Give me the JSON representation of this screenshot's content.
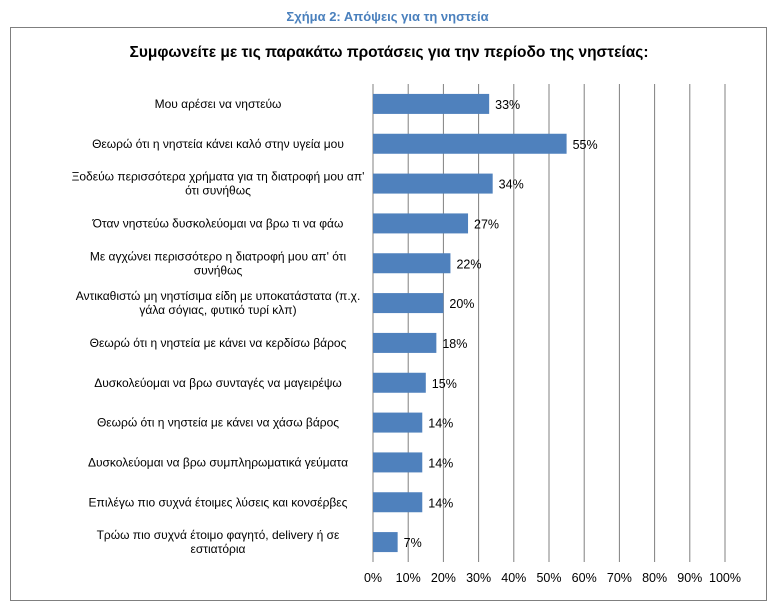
{
  "figure_caption": "Σχήμα 2: Απόψεις για τη νηστεία",
  "chart_data": {
    "type": "bar",
    "orientation": "horizontal",
    "title": "Συμφωνείτε με τις παρακάτω προτάσεις για την περίοδο της νηστείας:",
    "categories": [
      [
        "Μου αρέσει να νηστεύω"
      ],
      [
        "Θεωρώ ότι η νηστεία κάνει καλό στην υγεία μου"
      ],
      [
        "Ξοδεύω περισσότερα χρήματα για τη διατροφή μου απ'",
        "ότι συνήθως"
      ],
      [
        "Όταν νηστεύω δυσκολεύομαι να βρω τι να φάω"
      ],
      [
        "Με αγχώνει περισσότερο η διατροφή μου απ' ότι",
        "συνήθως"
      ],
      [
        "Αντικαθιστώ μη νηστίσιμα είδη με υποκατάστατα (π.χ.",
        "γάλα σόγιας, φυτικό τυρί κλπ)"
      ],
      [
        "Θεωρώ ότι η νηστεία με κάνει να κερδίσω βάρος"
      ],
      [
        "Δυσκολεύομαι να βρω συνταγές να μαγειρέψω"
      ],
      [
        "Θεωρώ ότι η νηστεία με κάνει να χάσω βάρος"
      ],
      [
        "Δυσκολεύομαι να βρω συμπληρωματικά γεύματα"
      ],
      [
        "Επιλέγω πιο συχνά έτοιμες λύσεις και κονσέρβες"
      ],
      [
        "Τρώω πιο συχνά έτοιμο φαγητό, delivery ή σε",
        "εστιατόρια"
      ]
    ],
    "values": [
      33,
      55,
      34,
      27,
      22,
      20,
      18,
      15,
      14,
      14,
      14,
      7
    ],
    "value_labels": [
      "33%",
      "55%",
      "34%",
      "27%",
      "22%",
      "20%",
      "18%",
      "15%",
      "14%",
      "14%",
      "14%",
      "7%"
    ],
    "xlim": [
      0,
      100
    ],
    "x_ticks": [
      "0%",
      "10%",
      "20%",
      "30%",
      "40%",
      "50%",
      "60%",
      "70%",
      "80%",
      "90%",
      "100%"
    ],
    "grid": "vertical",
    "bar_color": "#4f81bd",
    "grid_color": "#808080"
  }
}
